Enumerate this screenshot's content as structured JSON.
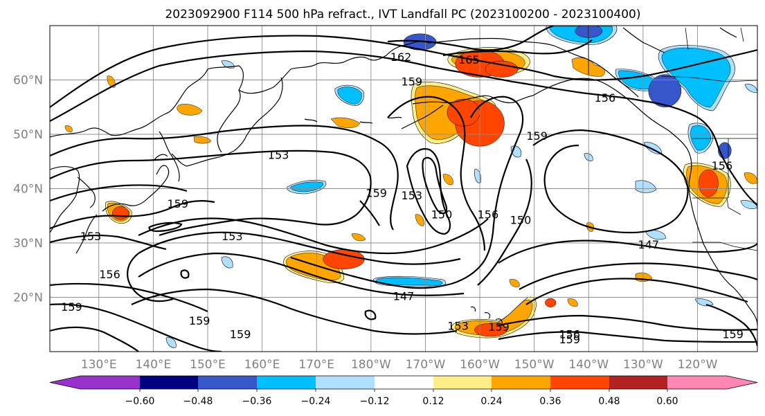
{
  "title": "2023092900 F114 500 hPa refract., IVT Landfall PC (2023100200 - 2023100400)",
  "map": {
    "lat_labels": [
      "60°N",
      "50°N",
      "40°N",
      "30°N",
      "20°N"
    ],
    "lat_values": [
      60,
      50,
      40,
      30,
      20
    ],
    "lon_labels": [
      "130°E",
      "140°E",
      "150°E",
      "160°E",
      "170°E",
      "180°W",
      "170°W",
      "160°W",
      "150°W",
      "140°W",
      "130°W",
      "120°W"
    ],
    "lon_values": [
      130,
      140,
      150,
      160,
      170,
      180,
      190,
      200,
      210,
      220,
      230,
      240
    ],
    "lon_range": [
      121,
      251
    ],
    "lat_range": [
      10,
      70
    ]
  },
  "contour_labels": [
    {
      "text": "162",
      "lon": 185.5,
      "lat": 63.5
    },
    {
      "text": "165",
      "lon": 198,
      "lat": 63
    },
    {
      "text": "159",
      "lon": 187.5,
      "lat": 59
    },
    {
      "text": "156",
      "lon": 223,
      "lat": 56
    },
    {
      "text": "159",
      "lon": 210.5,
      "lat": 49
    },
    {
      "text": "153",
      "lon": 163,
      "lat": 45.5
    },
    {
      "text": "156",
      "lon": 244.5,
      "lat": 43.5
    },
    {
      "text": "159",
      "lon": 181,
      "lat": 38.5
    },
    {
      "text": "153",
      "lon": 187.5,
      "lat": 38
    },
    {
      "text": "150",
      "lon": 193,
      "lat": 34.5
    },
    {
      "text": "156",
      "lon": 201.5,
      "lat": 34.5
    },
    {
      "text": "150",
      "lon": 207.5,
      "lat": 33.5
    },
    {
      "text": "159",
      "lon": 144.5,
      "lat": 36.5
    },
    {
      "text": "153",
      "lon": 128.5,
      "lat": 30.5
    },
    {
      "text": "153",
      "lon": 154.5,
      "lat": 30.5
    },
    {
      "text": "147",
      "lon": 231,
      "lat": 29
    },
    {
      "text": "156",
      "lon": 132,
      "lat": 23.5
    },
    {
      "text": "147",
      "lon": 186,
      "lat": 19.5
    },
    {
      "text": "159",
      "lon": 125,
      "lat": 17.5
    },
    {
      "text": "159",
      "lon": 148.5,
      "lat": 15
    },
    {
      "text": "153",
      "lon": 196,
      "lat": 14
    },
    {
      "text": "159",
      "lon": 203.5,
      "lat": 13.8
    },
    {
      "text": "156",
      "lon": 216.5,
      "lat": 12.5
    },
    {
      "text": "159",
      "lon": 216.5,
      "lat": 11.5
    },
    {
      "text": "159",
      "lon": 156,
      "lat": 12.5
    },
    {
      "text": "159",
      "lon": 246.5,
      "lat": 12.5
    }
  ],
  "colorbar": {
    "ticks": [
      "−0.60",
      "−0.48",
      "−0.36",
      "−0.24",
      "−0.12",
      "0.12",
      "0.24",
      "0.36",
      "0.48",
      "0.60"
    ],
    "colors": [
      "#9932cc",
      "#000080",
      "#3656c9",
      "#00bfff",
      "#b0e0ff",
      "#ffffff",
      "#ffee88",
      "#ffa500",
      "#ff4500",
      "#b22222",
      "#ff85b3"
    ]
  },
  "shading_patches": [
    {
      "lon": 200,
      "lat": 52,
      "rx": 4.5,
      "ry": 4.2,
      "color": "#ff4500"
    },
    {
      "lon": 197,
      "lat": 54,
      "rx": 3,
      "ry": 2.5,
      "color": "#ff4500"
    },
    {
      "lon": 200,
      "lat": 63,
      "rx": 4.5,
      "ry": 2.5,
      "color": "#ff4500"
    },
    {
      "lon": 204,
      "lat": 62,
      "rx": 3,
      "ry": 1.5,
      "color": "#ff4500"
    },
    {
      "lon": 175,
      "lat": 27,
      "rx": 3.8,
      "ry": 1.8,
      "color": "#ff4500"
    },
    {
      "lon": 242,
      "lat": 41,
      "rx": 1.8,
      "ry": 2.5,
      "color": "#ff4500"
    },
    {
      "lon": 202,
      "lat": 14,
      "rx": 3,
      "ry": 1.2,
      "color": "#ff4500"
    },
    {
      "lon": 134,
      "lat": 35.5,
      "rx": 1.5,
      "ry": 1.2,
      "color": "#ff4500"
    },
    {
      "lon": 213,
      "lat": 19,
      "rx": 1,
      "ry": 0.8,
      "color": "#ff4500"
    },
    {
      "lon": 189,
      "lat": 67,
      "rx": 3,
      "ry": 1.5,
      "color": "#3656c9"
    },
    {
      "lon": 220,
      "lat": 69,
      "rx": 2.5,
      "ry": 1.2,
      "color": "#3656c9"
    },
    {
      "lon": 234,
      "lat": 58,
      "rx": 3,
      "ry": 3,
      "color": "#3656c9"
    },
    {
      "lon": 245,
      "lat": 47,
      "rx": 1.2,
      "ry": 1.5,
      "color": "#3656c9"
    }
  ]
}
